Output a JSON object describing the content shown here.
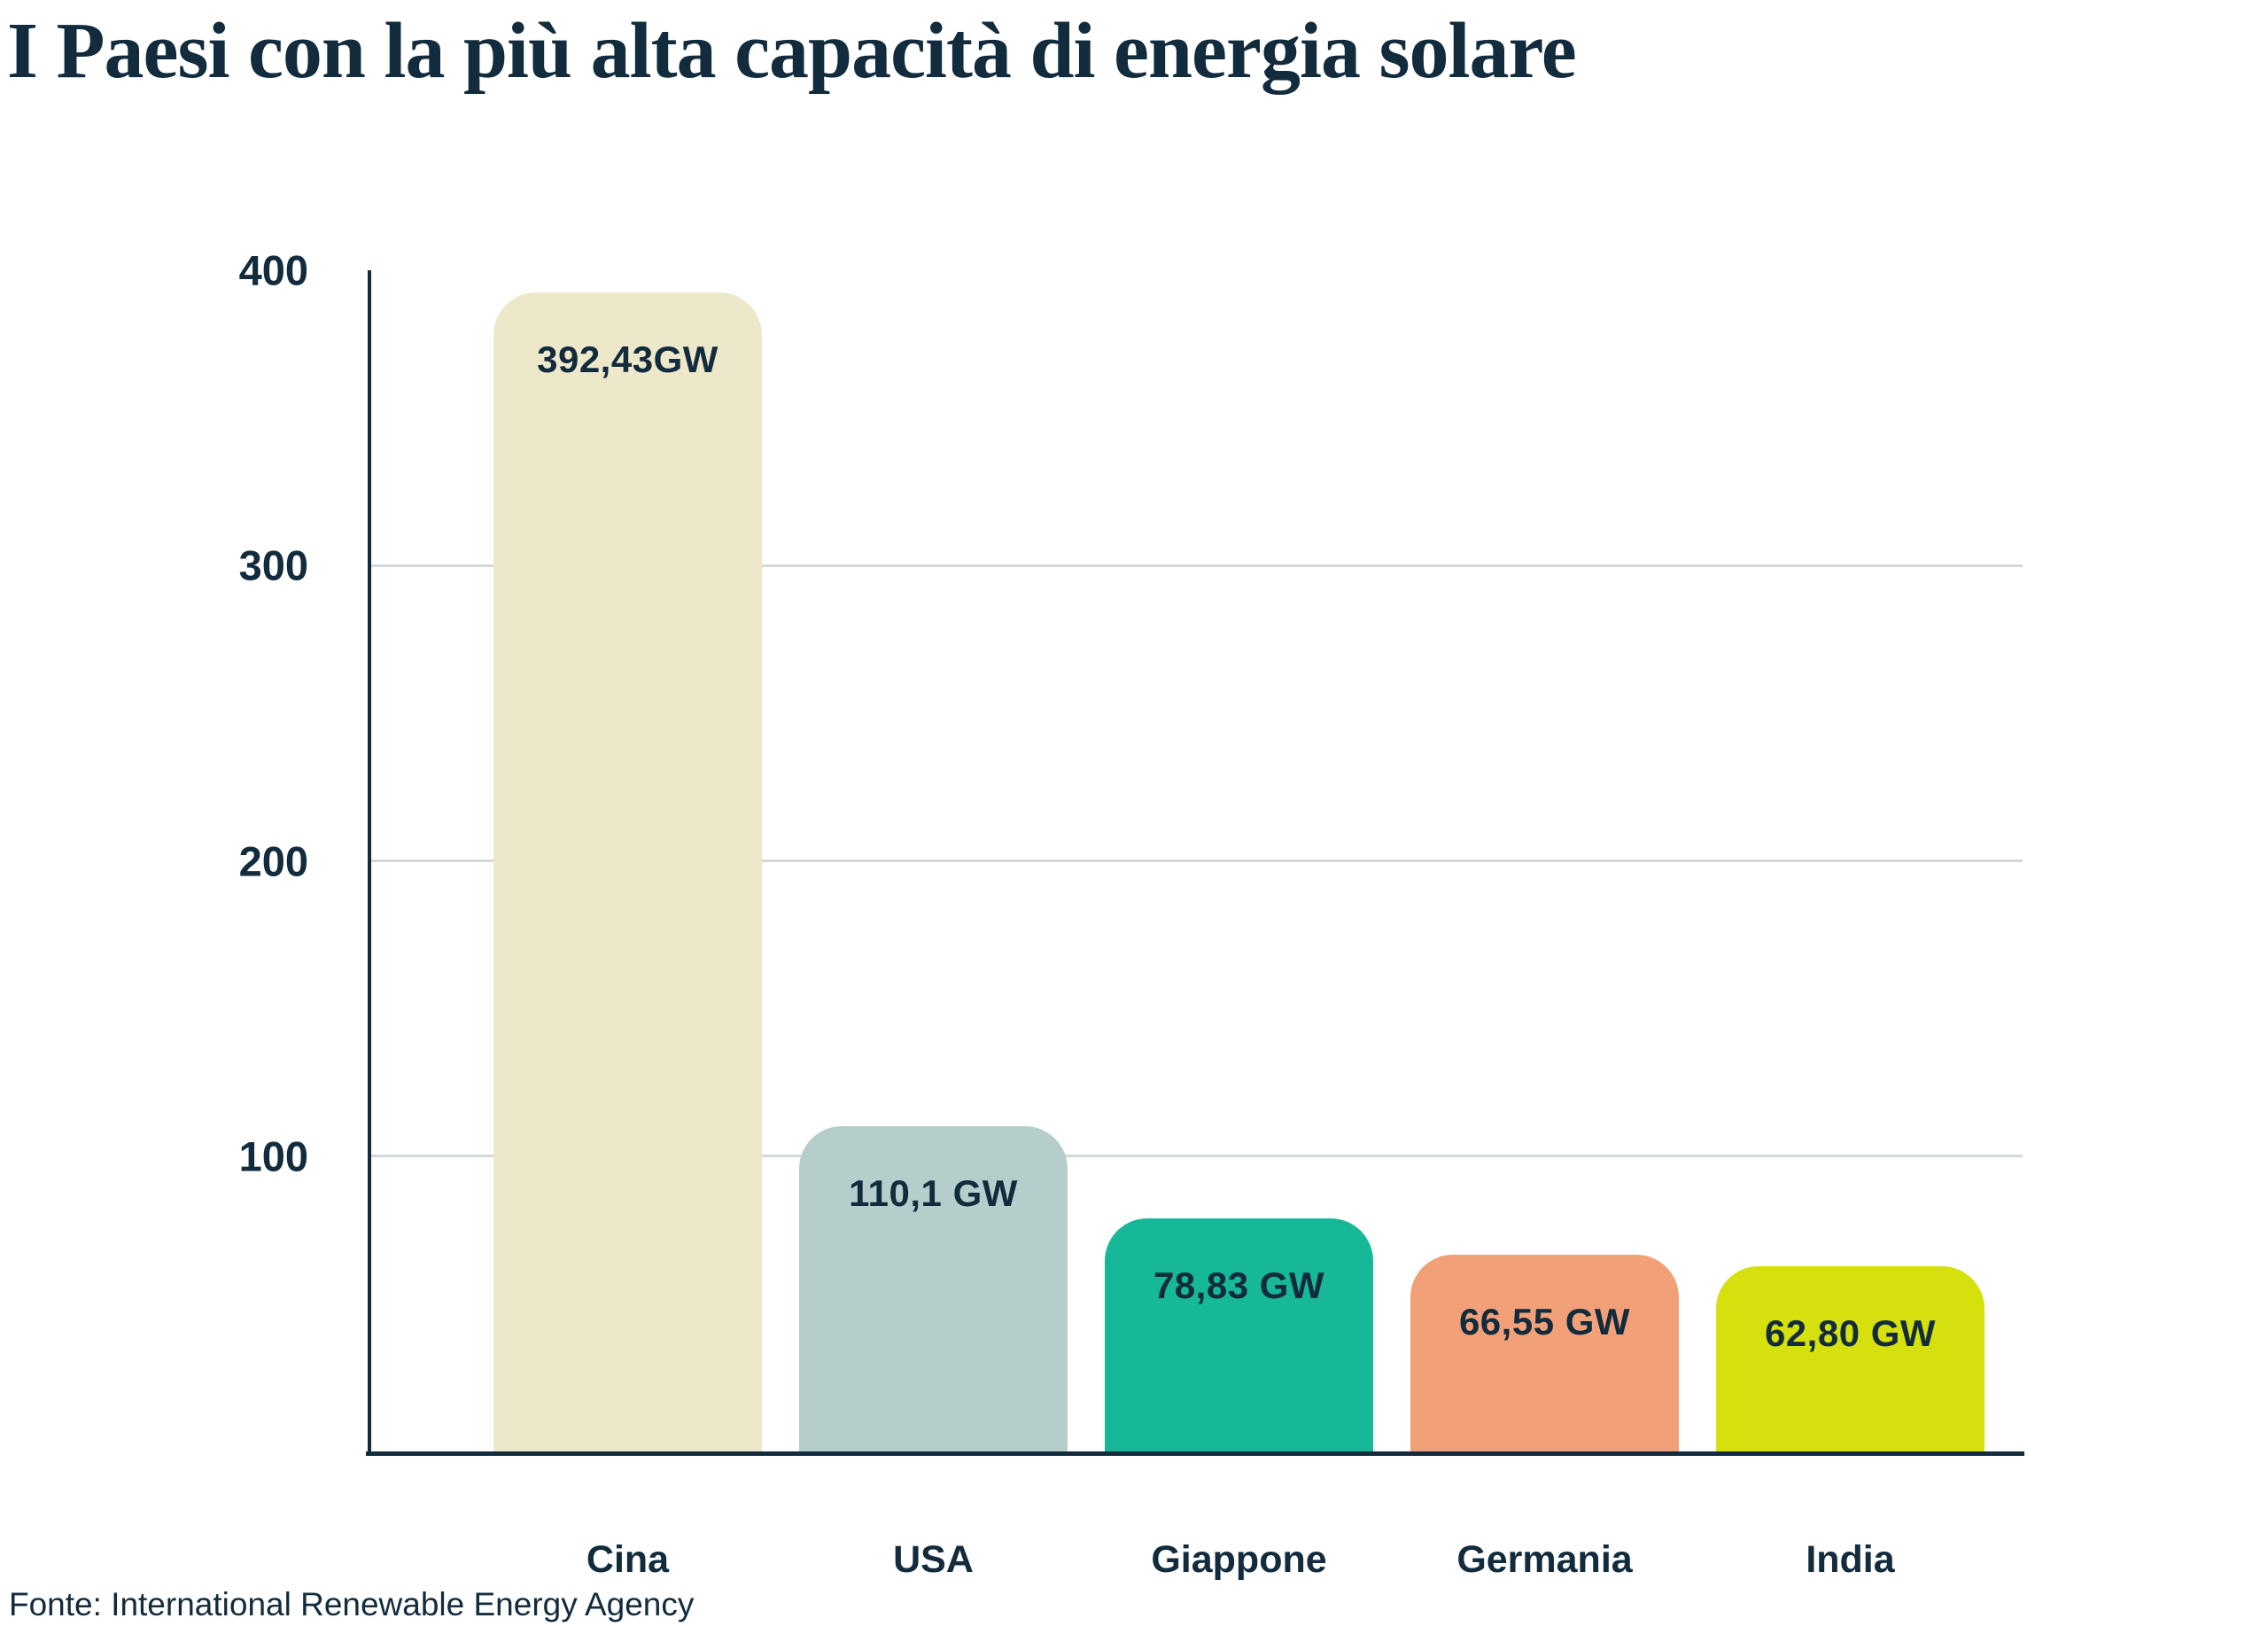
{
  "title": "I Paesi con la più alta capacità di energia solare",
  "source": "Fonte: International Renewable Energy Agency",
  "colors": {
    "text": "#122b3d",
    "axis": "#122b3d",
    "gridline": "#d3d7da",
    "background": "#ffffff"
  },
  "chart_data": {
    "type": "bar",
    "title": "I Paesi con la più alta capacità di energia solare",
    "categories": [
      "Cina",
      "USA",
      "Giappone",
      "Germania",
      "India"
    ],
    "values": [
      392.43,
      110.1,
      78.83,
      66.55,
      62.8
    ],
    "value_labels": [
      "392,43GW",
      "110,1 GW",
      "78,83 GW",
      "66,55 GW",
      "62,80 GW"
    ],
    "bar_colors": [
      "#ede8ca",
      "#b6cecb",
      "#16b897",
      "#f2a077",
      "#d5e00c"
    ],
    "unit": "GW",
    "xlabel": "",
    "ylabel": "",
    "ylim": [
      0,
      400
    ],
    "yticks": [
      400,
      300,
      200,
      100
    ],
    "ytick_labels": [
      "400",
      "300",
      "200",
      "100"
    ],
    "gridlines": [
      300,
      200,
      100
    ],
    "grid": "horizontal-only",
    "legend": "none",
    "source": "Fonte: International Renewable Energy Agency"
  }
}
